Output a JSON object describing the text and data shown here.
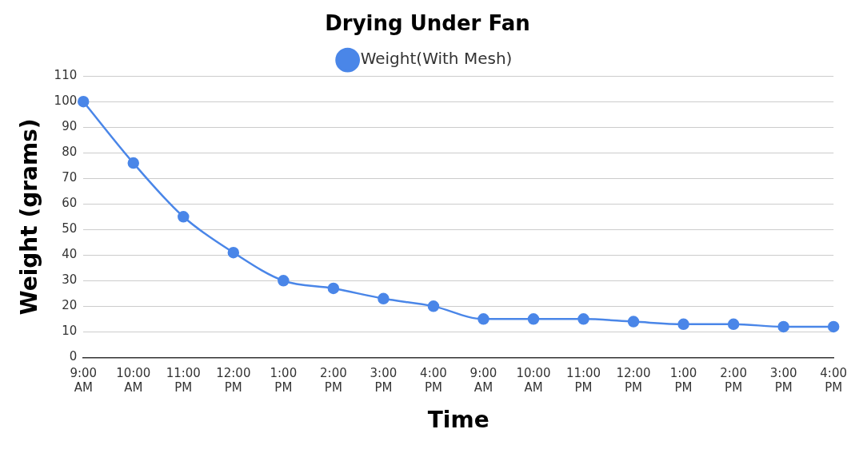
{
  "chart_data": {
    "type": "line",
    "title": "Drying Under Fan",
    "xlabel": "Time",
    "ylabel": "Weight (grams)",
    "categories": [
      "9:00 AM",
      "10:00 AM",
      "11:00 PM",
      "12:00 PM",
      "1:00 PM",
      "2:00 PM",
      "3:00 PM",
      "4:00 PM",
      "9:00 AM",
      "10:00 AM",
      "11:00 PM",
      "12:00 PM",
      "1:00 PM",
      "2:00 PM",
      "3:00 PM",
      "4:00 PM"
    ],
    "series": [
      {
        "name": "Weight(With Mesh)",
        "color": "#4a86e8",
        "values": [
          100,
          76,
          55,
          41,
          30,
          27,
          23,
          20,
          15,
          15,
          15,
          14,
          13,
          13,
          12,
          12
        ]
      }
    ],
    "ylim": [
      0,
      110
    ],
    "yticks": [
      0,
      10,
      20,
      30,
      40,
      50,
      60,
      70,
      80,
      90,
      100,
      110
    ],
    "grid": "y",
    "legend": "top",
    "marker": "circle",
    "line_style": "solid"
  }
}
